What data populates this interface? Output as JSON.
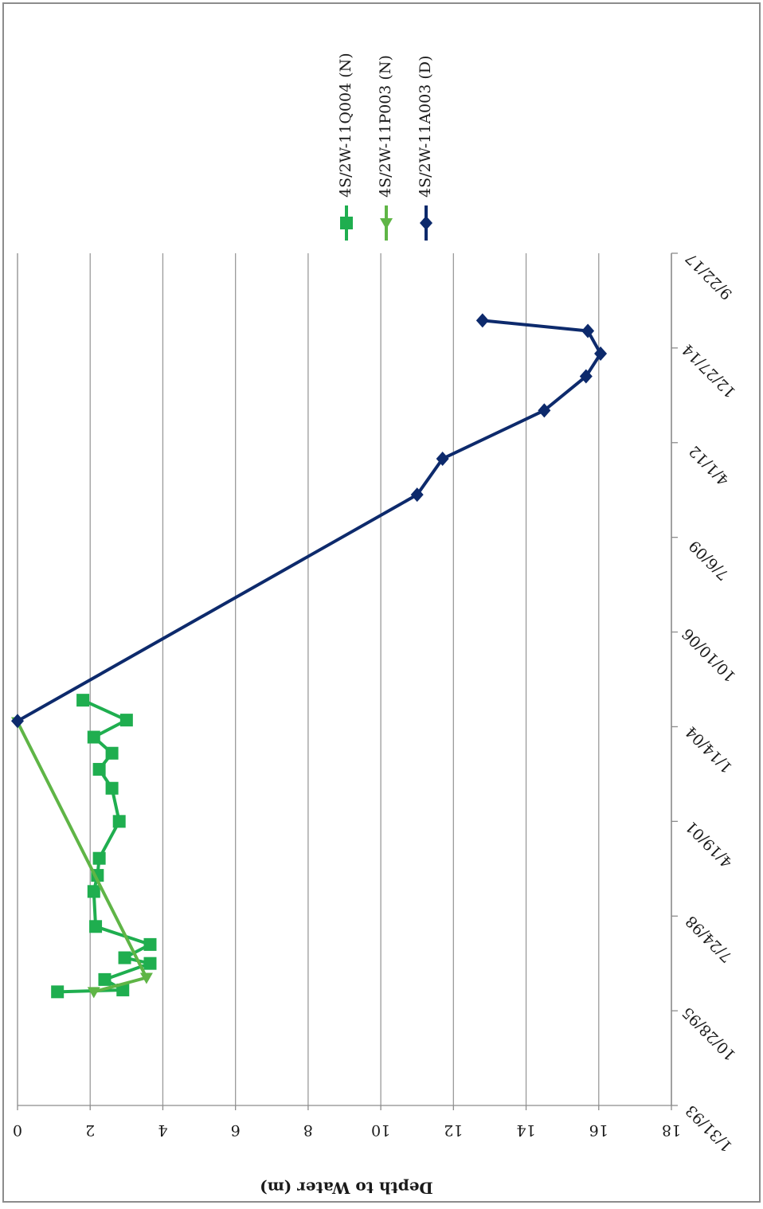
{
  "chart_data": {
    "type": "line",
    "title": "",
    "xlabel": "",
    "ylabel": "Depth to Water (m)",
    "ylim": [
      0,
      18
    ],
    "y_ticks": [
      "0",
      "2",
      "4",
      "6",
      "8",
      "10",
      "12",
      "14",
      "16",
      "18"
    ],
    "x_ticks": [
      "1/31/93",
      "10/28/95",
      "7/24/98",
      "4/19/01",
      "1/14/04",
      "10/10/06",
      "7/6/09",
      "4/1/12",
      "12/27/14",
      "9/22/17"
    ],
    "x_tick_days": [
      0,
      1000,
      2000,
      3000,
      4000,
      5000,
      6000,
      7000,
      8000,
      9000
    ],
    "grid": true,
    "legend_position": "right",
    "series": [
      {
        "name": "4S/2W-11Q004 (N)",
        "color": "#1fae4f",
        "marker": "square",
        "points": [
          [
            1200,
            1.1
          ],
          [
            1220,
            2.9
          ],
          [
            1330,
            2.4
          ],
          [
            1500,
            3.65
          ],
          [
            1560,
            2.95
          ],
          [
            1700,
            3.65
          ],
          [
            1890,
            2.15
          ],
          [
            2260,
            2.1
          ],
          [
            2430,
            2.2
          ],
          [
            2610,
            2.25
          ],
          [
            3000,
            2.8
          ],
          [
            3350,
            2.6
          ],
          [
            3550,
            2.25
          ],
          [
            3720,
            2.6
          ],
          [
            3890,
            2.1
          ],
          [
            4070,
            3.0
          ],
          [
            4280,
            1.8
          ]
        ]
      },
      {
        "name": "4S/2W-11P003 (N)",
        "color": "#5fb546",
        "marker": "triangle",
        "points": [
          [
            1200,
            2.1
          ],
          [
            1350,
            3.55
          ],
          [
            4050,
            0.0
          ]
        ]
      },
      {
        "name": "4S/2W-11A003 (D)",
        "color": "#0d2a6c",
        "marker": "diamond",
        "points": [
          [
            4060,
            0.0
          ],
          [
            6450,
            11.0
          ],
          [
            6830,
            11.7
          ],
          [
            7340,
            14.5
          ],
          [
            7700,
            15.65
          ],
          [
            7940,
            16.05
          ],
          [
            8180,
            15.7
          ],
          [
            8290,
            12.8
          ]
        ]
      }
    ]
  }
}
